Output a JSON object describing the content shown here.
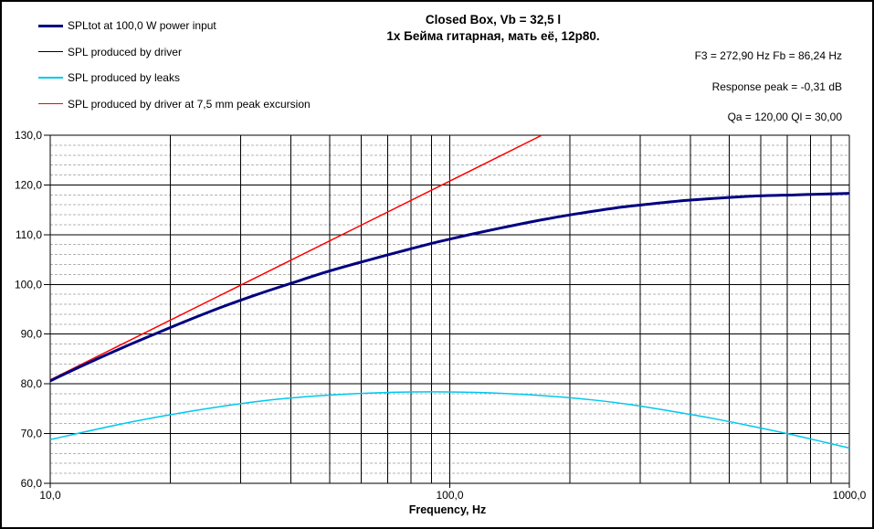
{
  "title": {
    "line1": "Closed Box, Vb = 32,5 l",
    "line2": "1x Бейма гитарная, мать её, 12p80."
  },
  "params": {
    "f3_fb": "F3 = 272,90 Hz  Fb = 86,24 Hz",
    "response_peak": "Response peak = -0,31 dB",
    "qa_ql": "Qa = 120,00  Ql = 30,00"
  },
  "chart_data": {
    "type": "line",
    "legend_position": "top-left",
    "grid": {
      "major_color": "#000000",
      "minor_color": "#b3b3b3",
      "minor_style": "dashed"
    },
    "x_axis": {
      "label": "Frequency, Hz",
      "scale": "log",
      "range": [
        10,
        1000
      ],
      "ticks": [
        {
          "value": 10,
          "label": "10,0"
        },
        {
          "value": 100,
          "label": "100,0"
        },
        {
          "value": 1000,
          "label": "1000,0"
        }
      ]
    },
    "y_axis": {
      "unit": "dB",
      "range": [
        60,
        130
      ],
      "major_step": 10,
      "minor_step": 2,
      "ticks": [
        {
          "value": 130,
          "label": "130,0"
        },
        {
          "value": 120,
          "label": "120,0"
        },
        {
          "value": 110,
          "label": "110,0"
        },
        {
          "value": 100,
          "label": "100,0"
        },
        {
          "value": 90,
          "label": "90,0"
        },
        {
          "value": 80,
          "label": "80,0"
        },
        {
          "value": 70,
          "label": "70,0"
        },
        {
          "value": 60,
          "label": "60,0"
        }
      ]
    },
    "series": [
      {
        "name": "SPLtot at 100,0 W power input",
        "color": "#000080",
        "width": 3,
        "points": [
          [
            10,
            80.6
          ],
          [
            12,
            83.6
          ],
          [
            15,
            87.1
          ],
          [
            18,
            89.8
          ],
          [
            22,
            92.7
          ],
          [
            27,
            95.5
          ],
          [
            33,
            98.0
          ],
          [
            40,
            100.2
          ],
          [
            50,
            102.7
          ],
          [
            62,
            104.8
          ],
          [
            76,
            106.7
          ],
          [
            94,
            108.6
          ],
          [
            115,
            110.2
          ],
          [
            141,
            111.7
          ],
          [
            173,
            113.1
          ],
          [
            212,
            114.3
          ],
          [
            261,
            115.4
          ],
          [
            320,
            116.2
          ],
          [
            393,
            116.9
          ],
          [
            483,
            117.4
          ],
          [
            593,
            117.8
          ],
          [
            728,
            118.0
          ],
          [
            894,
            118.2
          ],
          [
            1000,
            118.3
          ]
        ]
      },
      {
        "name": "SPL produced by driver",
        "color": "#000000",
        "width": 1,
        "points": [
          [
            10,
            80.5
          ],
          [
            12,
            83.5
          ],
          [
            15,
            87.0
          ],
          [
            18,
            89.7
          ],
          [
            22,
            92.6
          ],
          [
            27,
            95.4
          ],
          [
            33,
            97.9
          ],
          [
            40,
            100.1
          ],
          [
            50,
            102.6
          ],
          [
            62,
            104.7
          ],
          [
            76,
            106.6
          ],
          [
            94,
            108.5
          ],
          [
            115,
            110.1
          ],
          [
            141,
            111.6
          ],
          [
            173,
            113.0
          ],
          [
            212,
            114.2
          ],
          [
            261,
            115.3
          ],
          [
            320,
            116.1
          ],
          [
            393,
            116.8
          ],
          [
            483,
            117.3
          ],
          [
            593,
            117.7
          ],
          [
            728,
            117.9
          ],
          [
            894,
            118.1
          ],
          [
            1000,
            118.2
          ]
        ]
      },
      {
        "name": "SPL produced by leaks",
        "color": "#00c8ee",
        "width": 1.5,
        "points": [
          [
            10,
            68.8
          ],
          [
            15,
            71.9
          ],
          [
            20,
            73.8
          ],
          [
            27,
            75.5
          ],
          [
            35,
            76.7
          ],
          [
            45,
            77.5
          ],
          [
            57,
            78.0
          ],
          [
            72,
            78.3
          ],
          [
            90,
            78.4
          ],
          [
            113,
            78.3
          ],
          [
            142,
            78.0
          ],
          [
            180,
            77.5
          ],
          [
            226,
            76.8
          ],
          [
            285,
            75.8
          ],
          [
            359,
            74.5
          ],
          [
            452,
            73.1
          ],
          [
            569,
            71.5
          ],
          [
            717,
            69.8
          ],
          [
            1000,
            67.1
          ]
        ]
      },
      {
        "name": "SPL produced by driver at 7,5 mm peak excursion",
        "color": "#ff0000",
        "width": 1.5,
        "points": [
          [
            10,
            80.8
          ],
          [
            60,
            111.9
          ],
          [
            170,
            130.0
          ]
        ]
      }
    ]
  }
}
